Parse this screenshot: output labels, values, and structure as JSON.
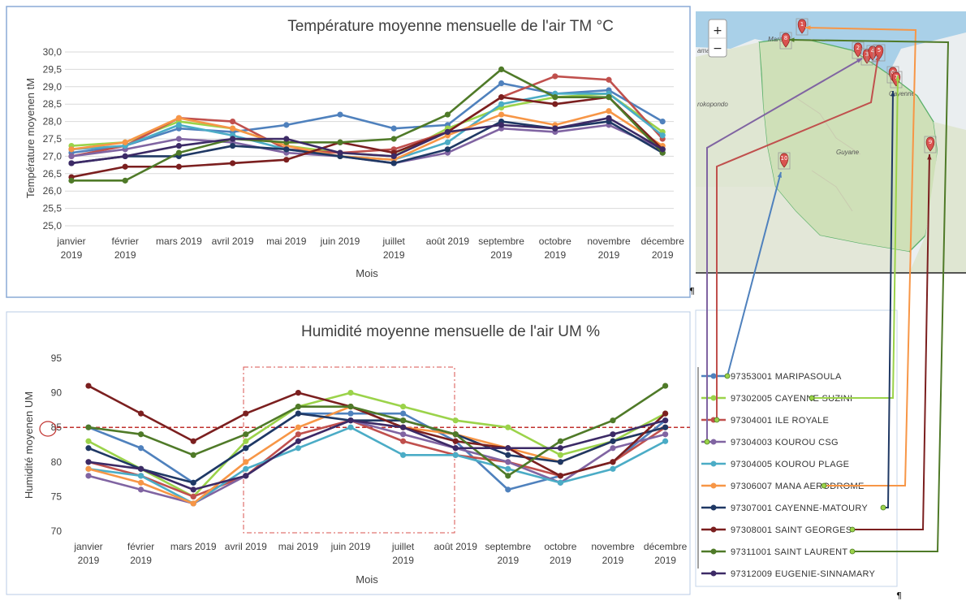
{
  "colors": {
    "97353001": "#4F81BD",
    "97302005": "#9BD34A",
    "97304001": "#C0504D",
    "97304003": "#8064A2",
    "97304005": "#4BACC6",
    "97306007": "#F79646",
    "97307001": "#1F3864",
    "97308001": "#7B1F1F",
    "97311001": "#4F7A28",
    "97312009": "#3C2A66"
  },
  "chart_data": [
    {
      "type": "line",
      "title": "Température moyenne mensuelle de l'air TM °C",
      "xlabel": "Mois",
      "ylabel": "Température moyenen tM",
      "ylim": [
        25.0,
        30.0
      ],
      "yticks": [
        "25,0",
        "25,5",
        "26,0",
        "26,5",
        "27,0",
        "27,5",
        "28,0",
        "28,5",
        "29,0",
        "29,5",
        "30,0"
      ],
      "categories": [
        [
          "janvier",
          "2019"
        ],
        [
          "février",
          "2019"
        ],
        [
          "mars 2019"
        ],
        [
          "avril 2019"
        ],
        [
          "mai 2019"
        ],
        [
          "juin 2019"
        ],
        [
          "juillet",
          "2019"
        ],
        [
          "août 2019"
        ],
        [
          "septembre",
          "2019"
        ],
        [
          "octobre",
          "2019"
        ],
        [
          "novembre",
          "2019"
        ],
        [
          "décembre",
          "2019"
        ]
      ],
      "grid": true,
      "series": [
        {
          "name": "97353001 MARIPASOULA",
          "values": [
            27.1,
            27.3,
            27.8,
            27.7,
            27.9,
            28.2,
            27.8,
            27.9,
            29.1,
            28.8,
            28.9,
            28.0
          ]
        },
        {
          "name": "97302005 CAYENNE SUZINI",
          "values": [
            27.3,
            27.4,
            28.0,
            27.8,
            27.3,
            27.1,
            27.0,
            27.8,
            28.4,
            28.7,
            28.8,
            27.7
          ]
        },
        {
          "name": "97304001 ILE ROYALE",
          "values": [
            27.0,
            27.3,
            28.1,
            28.0,
            27.2,
            27.1,
            27.2,
            27.7,
            28.7,
            29.3,
            29.2,
            27.5
          ]
        },
        {
          "name": "97304003 KOUROU CSG",
          "values": [
            27.0,
            27.2,
            27.5,
            27.4,
            27.1,
            27.0,
            26.8,
            27.1,
            27.8,
            27.7,
            27.9,
            27.2
          ]
        },
        {
          "name": "97304005 KOUROU PLAGE",
          "values": [
            27.2,
            27.3,
            27.9,
            27.6,
            27.2,
            27.0,
            26.9,
            27.4,
            28.5,
            28.8,
            28.8,
            27.6
          ]
        },
        {
          "name": "97306007 MANA AERODROME",
          "values": [
            27.2,
            27.4,
            28.1,
            27.8,
            27.3,
            27.0,
            26.9,
            27.6,
            28.2,
            27.9,
            28.3,
            27.3
          ]
        },
        {
          "name": "97307001 CAYENNE-MATOURY",
          "values": [
            26.8,
            27.0,
            27.0,
            27.3,
            27.2,
            27.0,
            26.8,
            27.2,
            28.0,
            27.8,
            28.0,
            27.1
          ]
        },
        {
          "name": "97308001 SAINT GEORGES",
          "values": [
            26.4,
            26.7,
            26.7,
            26.8,
            26.9,
            27.4,
            27.1,
            27.7,
            28.7,
            28.5,
            28.7,
            27.2
          ]
        },
        {
          "name": "97311001 SAINT LAURENT",
          "values": [
            26.3,
            26.3,
            27.1,
            27.5,
            27.4,
            27.4,
            27.5,
            28.2,
            29.5,
            28.7,
            28.7,
            27.1
          ]
        },
        {
          "name": "97312009 EUGENIE-SINNAMARY",
          "values": [
            26.8,
            27.0,
            27.3,
            27.5,
            27.5,
            27.1,
            27.0,
            27.7,
            27.9,
            27.8,
            28.1,
            27.2
          ]
        }
      ]
    },
    {
      "type": "line",
      "title": "Humidité moyenne mensuelle de l'air UM %",
      "xlabel": "Mois",
      "ylabel": "Humidité moyenen UM",
      "ylim": [
        70,
        95
      ],
      "yticks": [
        "70",
        "75",
        "80",
        "85",
        "90",
        "95"
      ],
      "reference_line": 85,
      "highlight_range": [
        "avril 2019",
        "août 2019"
      ],
      "categories": [
        [
          "janvier",
          "2019"
        ],
        [
          "février",
          "2019"
        ],
        [
          "mars 2019"
        ],
        [
          "avril 2019"
        ],
        [
          "mai 2019"
        ],
        [
          "juin 2019"
        ],
        [
          "juillet",
          "2019"
        ],
        [
          "août 2019"
        ],
        [
          "septembre",
          "2019"
        ],
        [
          "octobre",
          "2019"
        ],
        [
          "novembre",
          "2019"
        ],
        [
          "décembre",
          "2019"
        ]
      ],
      "grid": false,
      "series": [
        {
          "name": "97353001 MARIPASOULA",
          "values": [
            85,
            82,
            77,
            82,
            87,
            87,
            87,
            83,
            76,
            78,
            80,
            86
          ]
        },
        {
          "name": "97302005 CAYENNE SUZINI",
          "values": [
            83,
            79,
            75,
            83,
            88,
            90,
            88,
            86,
            85,
            81,
            83,
            87
          ]
        },
        {
          "name": "97304001 ILE ROYALE",
          "values": [
            80,
            78,
            75,
            78,
            84,
            86,
            83,
            81,
            80,
            78,
            80,
            85
          ]
        },
        {
          "name": "97304003 KOUROU CSG",
          "values": [
            78,
            76,
            74,
            78,
            83,
            86,
            84,
            82,
            80,
            77,
            82,
            84
          ]
        },
        {
          "name": "97304005 KOUROU PLAGE",
          "values": [
            79,
            78,
            74,
            79,
            82,
            85,
            81,
            81,
            79,
            77,
            79,
            83
          ]
        },
        {
          "name": "97306007 MANA AERODROME",
          "values": [
            79,
            77,
            74,
            80,
            85,
            88,
            85,
            84,
            82,
            80,
            83,
            85
          ]
        },
        {
          "name": "97307001 CAYENNE-MATOURY",
          "values": [
            82,
            79,
            77,
            82,
            87,
            86,
            86,
            84,
            81,
            80,
            83,
            85
          ]
        },
        {
          "name": "97308001 SAINT GEORGES",
          "values": [
            91,
            87,
            83,
            87,
            90,
            88,
            85,
            83,
            82,
            78,
            80,
            87
          ]
        },
        {
          "name": "97311001 SAINT LAURENT",
          "values": [
            85,
            84,
            81,
            84,
            88,
            88,
            86,
            84,
            78,
            83,
            86,
            91
          ]
        },
        {
          "name": "97312009 EUGENIE-SINNAMARY",
          "values": [
            80,
            79,
            76,
            78,
            83,
            86,
            85,
            82,
            82,
            82,
            84,
            86
          ]
        }
      ]
    }
  ],
  "legend": {
    "items": [
      {
        "code": "97353001",
        "name": "MARIPASOULA"
      },
      {
        "code": "97302005",
        "name": "CAYENNE SUZINI"
      },
      {
        "code": "97304001",
        "name": "ILE ROYALE"
      },
      {
        "code": "97304003",
        "name": "KOUROU CSG"
      },
      {
        "code": "97304005",
        "name": "KOUROU PLAGE"
      },
      {
        "code": "97306007",
        "name": "MANA AERODROME"
      },
      {
        "code": "97307001",
        "name": "CAYENNE-MATOURY"
      },
      {
        "code": "97308001",
        "name": "SAINT GEORGES"
      },
      {
        "code": "97311001",
        "name": "SAINT LAURENT"
      },
      {
        "code": "97312009",
        "name": "EUGENIE-SINNAMARY"
      }
    ]
  },
  "map": {
    "zoom_in_label": "+",
    "zoom_out_label": "−",
    "labels": [
      "Marowij",
      "Guyane",
      "rokopondo",
      "amaribo",
      "Cayenne"
    ],
    "pin_numbers": [
      "1",
      "8",
      "2",
      "3",
      "4",
      "5",
      "6",
      "7",
      "9",
      "10"
    ]
  },
  "marks": {
    "pilcrow": "¶"
  }
}
